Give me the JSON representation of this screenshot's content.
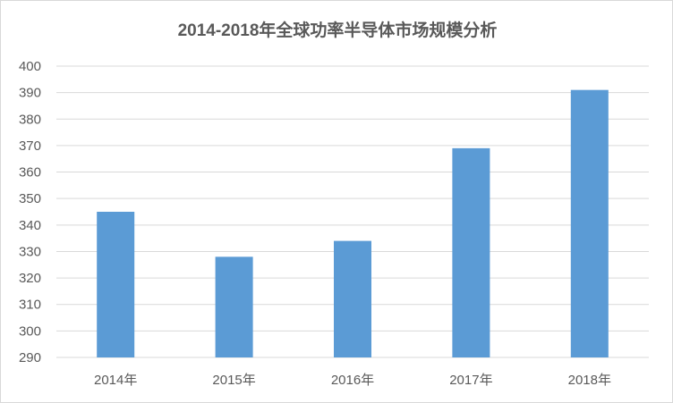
{
  "chart_data": {
    "type": "bar",
    "title": "2014-2018年全球功率半导体市场规模分析",
    "categories": [
      "2014年",
      "2015年",
      "2016年",
      "2017年",
      "2018年"
    ],
    "values": [
      345,
      328,
      334,
      369,
      391
    ],
    "xlabel": "",
    "ylabel": "",
    "ylim": [
      290,
      400
    ],
    "yticks": [
      290,
      300,
      310,
      320,
      330,
      340,
      350,
      360,
      370,
      380,
      390,
      400
    ],
    "grid": true,
    "legend": "none",
    "bar_color": "#5b9bd5",
    "grid_color": "#d9d9d9"
  }
}
